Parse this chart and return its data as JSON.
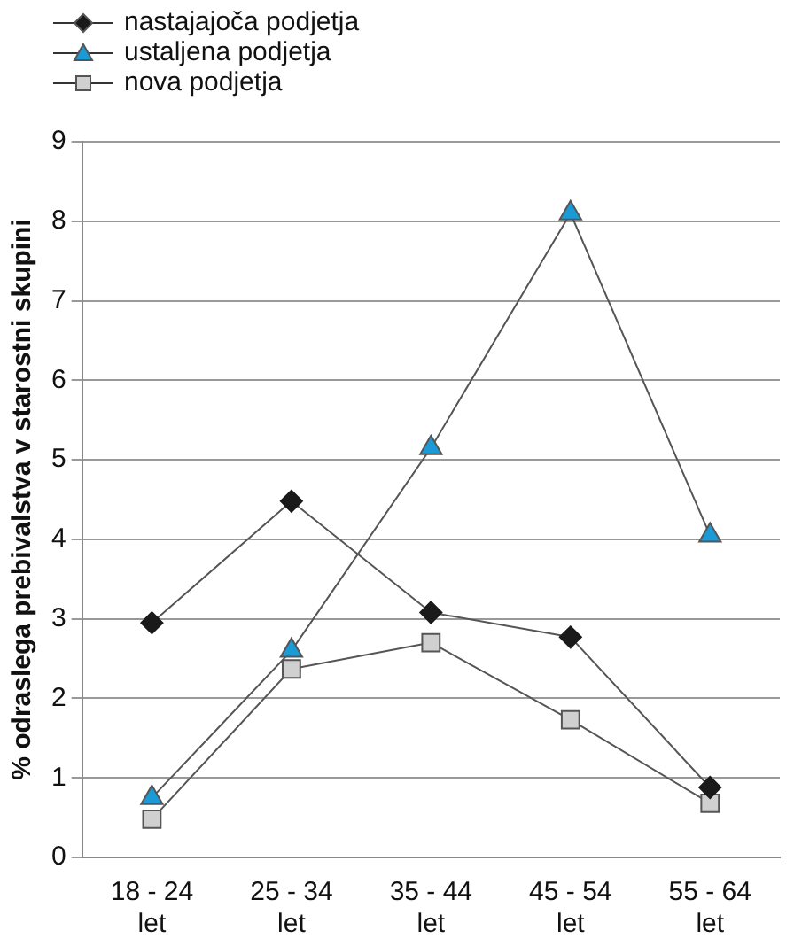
{
  "chart_data": {
    "type": "line",
    "ylabel": "% odraslega prebivalstva v starostni skupini",
    "categories": [
      "18 - 24 let",
      "25 - 34 let",
      "35 - 44 let",
      "45 - 54 let",
      "55 - 64 let"
    ],
    "series": [
      {
        "name": "nastajajoča podjetja",
        "color": "#1a1a1a",
        "marker": "diamond",
        "values": [
          2.95,
          4.48,
          3.08,
          2.77,
          0.88
        ]
      },
      {
        "name": "ustaljena podjetja",
        "color": "#1a9ad6",
        "marker": "triangle",
        "values": [
          0.75,
          2.6,
          5.15,
          8.1,
          4.05
        ]
      },
      {
        "name": "nova podjetja",
        "color": "#d0d0d0",
        "marker": "square",
        "values": [
          0.48,
          2.37,
          2.7,
          1.73,
          0.68
        ]
      }
    ],
    "ylim": [
      0,
      9
    ],
    "yticks": [
      0,
      1,
      2,
      3,
      4,
      5,
      6,
      7,
      8,
      9
    ],
    "grid": "y",
    "legend": "top left",
    "line_style": "solid"
  }
}
